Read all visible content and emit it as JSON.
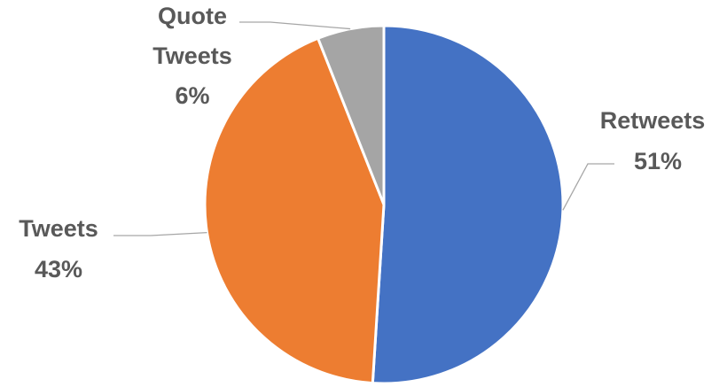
{
  "chart_data": {
    "type": "pie",
    "title": "",
    "slices": [
      {
        "label": "Retweets",
        "percent_label": "51%",
        "value": 51,
        "color": "#4472C4"
      },
      {
        "label": "Tweets",
        "percent_label": "43%",
        "value": 43,
        "color": "#ED7D31"
      },
      {
        "label": "Quote Tweets",
        "label_lines": [
          "Quote",
          "Tweets"
        ],
        "percent_label": "6%",
        "value": 6,
        "color": "#A5A5A5"
      }
    ],
    "start": "12 o'clock",
    "direction": "clockwise",
    "legend": "none",
    "data_labels": "outside with leader lines",
    "label_color": "#595959",
    "leader_line_color": "#A6A6A6"
  }
}
